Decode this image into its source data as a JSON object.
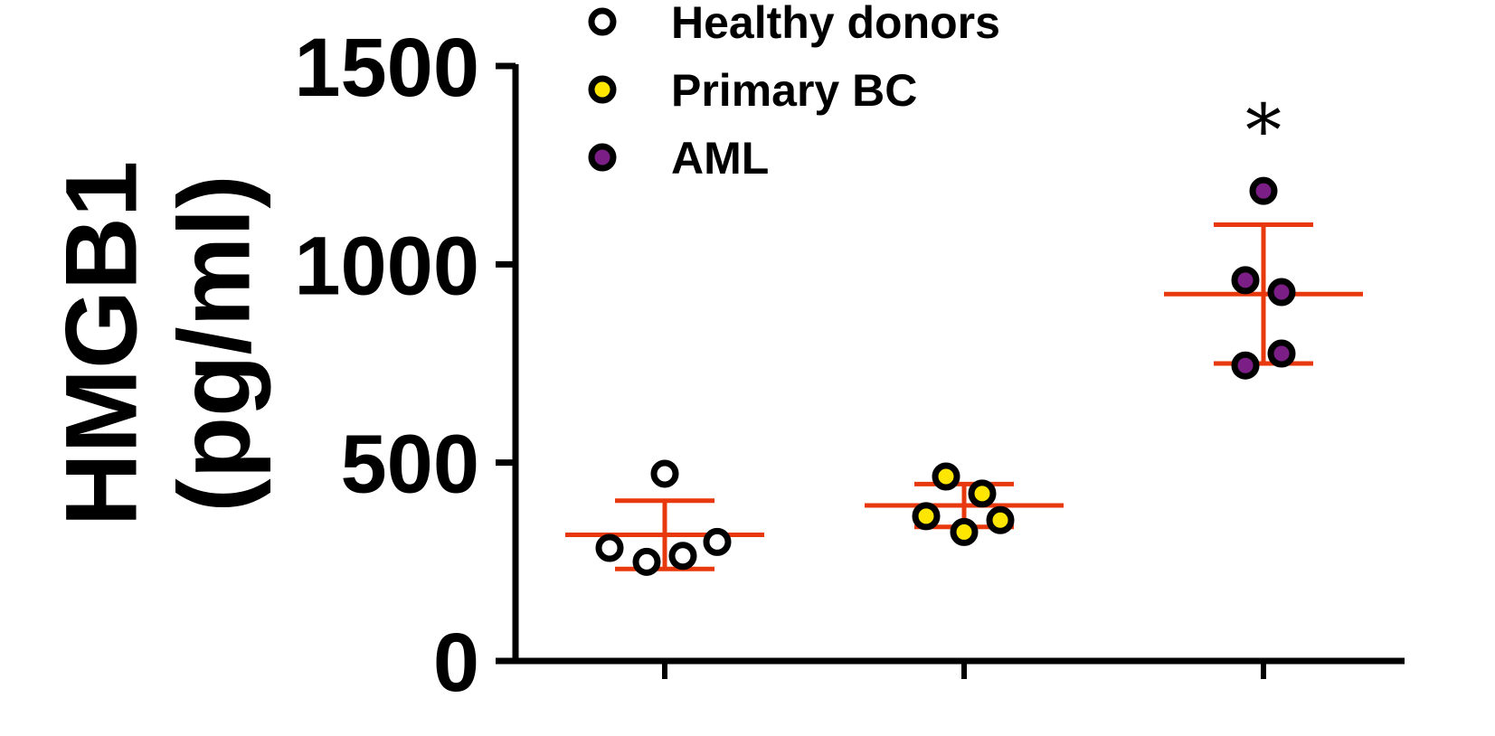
{
  "chart_data": {
    "type": "scatter",
    "ylabel_lines": [
      "HMGB1",
      "(pg/ml)"
    ],
    "ylim": [
      0,
      1500
    ],
    "yticks": [
      0,
      500,
      1000,
      1500
    ],
    "y_tick_labels": [
      "0",
      "500",
      "1000",
      "1500"
    ],
    "grid": false,
    "legend_position": "top",
    "series": [
      {
        "name": "Healthy donors",
        "fill": "#ffffff",
        "points": [
          472,
          285,
          250,
          265,
          300
        ],
        "mean": 318,
        "sd_upper": 404,
        "sd_lower": 232
      },
      {
        "name": "Primary BC",
        "fill": "#ffe600",
        "points": [
          465,
          422,
          365,
          325,
          355
        ],
        "mean": 392,
        "sd_upper": 446,
        "sd_lower": 338
      },
      {
        "name": "AML",
        "fill": "#7b1e86",
        "points": [
          1185,
          960,
          930,
          775,
          745
        ],
        "mean": 925,
        "sd_upper": 1100,
        "sd_lower": 750
      }
    ],
    "annotations": [
      {
        "text": "*",
        "series": "AML"
      }
    ],
    "colors": {
      "error_bar": "#e8380d",
      "marker_edge": "#000000",
      "axis": "#000000"
    }
  }
}
